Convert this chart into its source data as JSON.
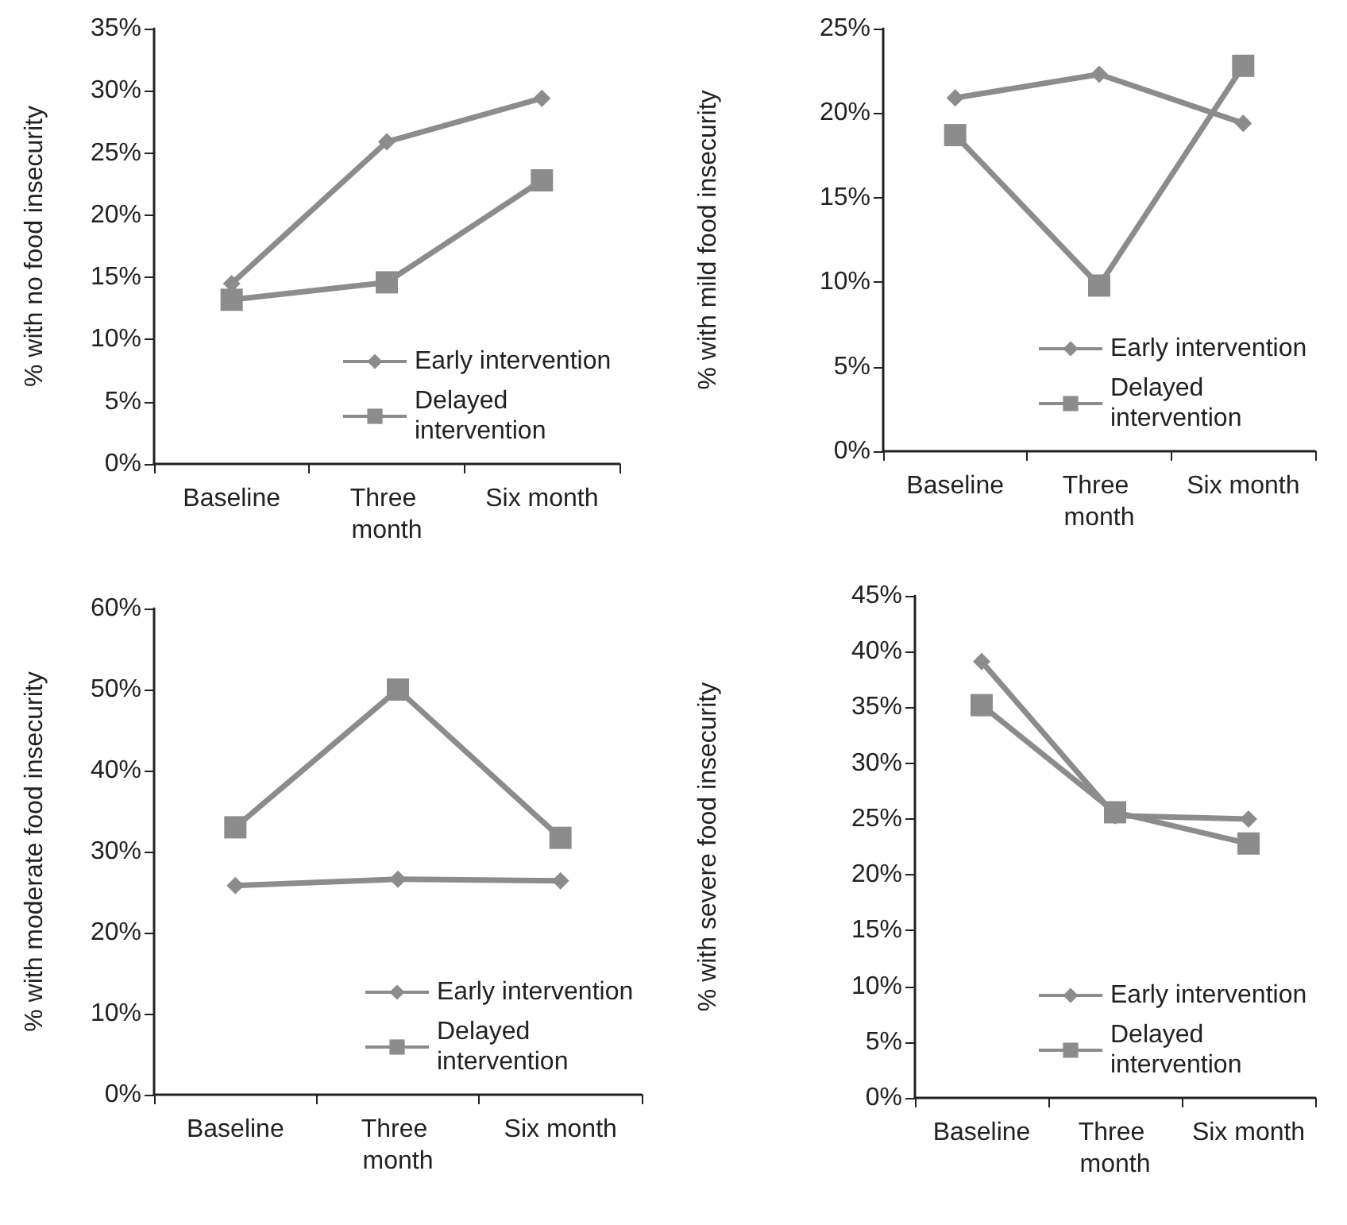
{
  "chart_data": [
    {
      "type": "line",
      "ylabel": "% with no food insecurity",
      "categories": [
        "Baseline",
        "Three month",
        "Six month"
      ],
      "ylim": [
        0,
        35
      ],
      "yticks": [
        {
          "value": 0,
          "label": "0%"
        },
        {
          "value": 5,
          "label": "5%"
        },
        {
          "value": 10,
          "label": "10%"
        },
        {
          "value": 15,
          "label": "15%"
        },
        {
          "value": 20,
          "label": "20%"
        },
        {
          "value": 25,
          "label": "25%"
        },
        {
          "value": 30,
          "label": "30%"
        },
        {
          "value": 35,
          "label": "35%"
        }
      ],
      "grid": false,
      "legend": "bottom right",
      "series": [
        {
          "name": "Early intervention",
          "color": "#8c8c8c",
          "marker": "diamond",
          "values": [
            14.5,
            25.9,
            29.4
          ]
        },
        {
          "name": "Delayed intervention",
          "color": "#8c8c8c",
          "marker": "square",
          "values": [
            13.2,
            14.6,
            22.8
          ]
        }
      ]
    },
    {
      "type": "line",
      "ylabel": "% with mild food insecurity",
      "categories": [
        "Baseline",
        "Three month",
        "Six month"
      ],
      "ylim": [
        0,
        25
      ],
      "yticks": [
        {
          "value": 0,
          "label": "0%"
        },
        {
          "value": 5,
          "label": "5%"
        },
        {
          "value": 10,
          "label": "10%"
        },
        {
          "value": 15,
          "label": "15%"
        },
        {
          "value": 20,
          "label": "20%"
        },
        {
          "value": 25,
          "label": "25%"
        }
      ],
      "grid": false,
      "legend": "bottom right",
      "series": [
        {
          "name": "Early intervention",
          "color": "#8c8c8c",
          "marker": "diamond",
          "values": [
            20.9,
            22.3,
            19.4
          ]
        },
        {
          "name": "Delayed intervention",
          "color": "#8c8c8c",
          "marker": "square",
          "values": [
            18.7,
            9.8,
            22.8
          ]
        }
      ]
    },
    {
      "type": "line",
      "ylabel": "% with moderate food insecurity",
      "categories": [
        "Baseline",
        "Three month",
        "Six month"
      ],
      "ylim": [
        0,
        60
      ],
      "yticks": [
        {
          "value": 0,
          "label": "0%"
        },
        {
          "value": 10,
          "label": "10%"
        },
        {
          "value": 20,
          "label": "20%"
        },
        {
          "value": 30,
          "label": "30%"
        },
        {
          "value": 40,
          "label": "40%"
        },
        {
          "value": 50,
          "label": "50%"
        },
        {
          "value": 60,
          "label": "60%"
        }
      ],
      "grid": false,
      "legend": "bottom right",
      "series": [
        {
          "name": "Early intervention",
          "color": "#8c8c8c",
          "marker": "diamond",
          "values": [
            25.8,
            26.6,
            26.4
          ]
        },
        {
          "name": "Delayed intervention",
          "color": "#8c8c8c",
          "marker": "square",
          "values": [
            33.0,
            50.0,
            31.7
          ]
        }
      ]
    },
    {
      "type": "line",
      "ylabel": "% with severe food insecurity",
      "categories": [
        "Baseline",
        "Three month",
        "Six month"
      ],
      "ylim": [
        0,
        45
      ],
      "yticks": [
        {
          "value": 0,
          "label": "0%"
        },
        {
          "value": 5,
          "label": "5%"
        },
        {
          "value": 10,
          "label": "10%"
        },
        {
          "value": 15,
          "label": "15%"
        },
        {
          "value": 20,
          "label": "20%"
        },
        {
          "value": 25,
          "label": "25%"
        },
        {
          "value": 30,
          "label": "30%"
        },
        {
          "value": 35,
          "label": "35%"
        },
        {
          "value": 40,
          "label": "40%"
        },
        {
          "value": 45,
          "label": "45%"
        }
      ],
      "grid": false,
      "legend": "bottom right",
      "series": [
        {
          "name": "Early intervention",
          "color": "#8c8c8c",
          "marker": "diamond",
          "values": [
            39.1,
            25.3,
            25.0
          ]
        },
        {
          "name": "Delayed intervention",
          "color": "#8c8c8c",
          "marker": "square",
          "values": [
            35.2,
            25.6,
            22.8
          ]
        }
      ]
    }
  ]
}
